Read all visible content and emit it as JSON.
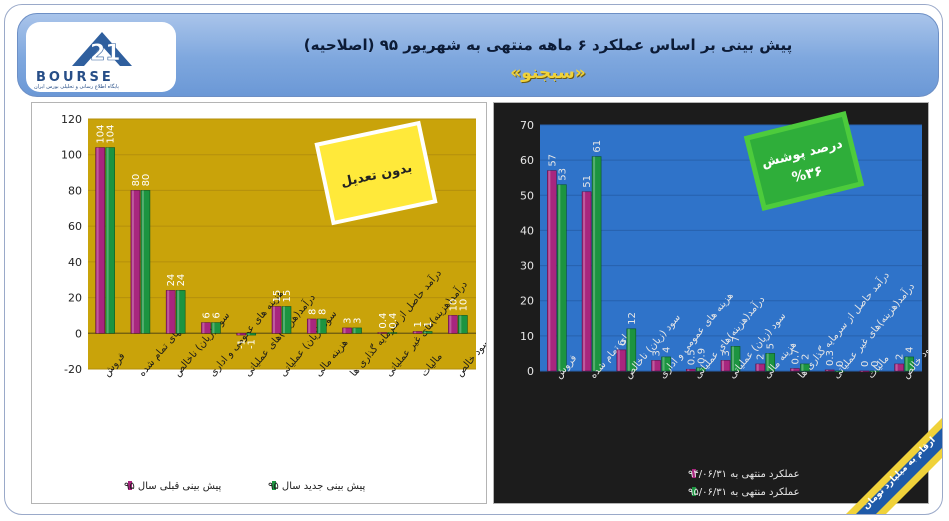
{
  "header": {
    "title": "پیش بینی بر اساس عملکرد ۶ ماهه منتهی به شهریور ۹۵ (اصلاحیه)",
    "company": "«سبجنو»",
    "logo_word": "BOURSE",
    "logo_sub": "پایگاه اطلاع رسانی و تحلیلی بورس ایران"
  },
  "left_badge": "بدون تعدیل",
  "right_badge": {
    "line1": "درصد پوشش",
    "line2": "%۳۶"
  },
  "corner_note": "ارقام به میلیارد تومان",
  "colors": {
    "series_pink": "#a8267e",
    "series_green": "#1c9440",
    "left_plot_bg": "#c9a30a",
    "right_plot_bg": "#2f73c9",
    "header_bg": "#7ea7de",
    "badge_border": "#4dcb3c"
  },
  "chart_data": [
    {
      "type": "bar",
      "panel": "left",
      "categories": [
        "فروش",
        "بهای تمام شده",
        "سود (زیان) ناخالص",
        "هزینه های عمومی و اداری",
        "درآمد(هزینه)های عملیاتی",
        "سود (زیان) عملیاتی",
        "هزینه مالی",
        "درآمد حاصل از سرمایه گذاری ها",
        "درآمد(هزینه)های غیر عملیاتی",
        "مالیات",
        "سود خالص"
      ],
      "series": [
        {
          "name": "پیش بینی قبلی سال ۹۵",
          "values": [
            104,
            80,
            24,
            6,
            -1,
            15,
            8,
            3,
            0.4,
            1,
            10
          ]
        },
        {
          "name": "پیش بینی جدید سال ۹۵",
          "values": [
            104,
            80,
            24,
            6,
            -1,
            15,
            8,
            3,
            0.4,
            1,
            10
          ]
        }
      ],
      "value_labels": [
        [
          "104",
          "80",
          "24",
          "6",
          "-1",
          "15",
          "8",
          "3",
          "0.4",
          "1",
          "10"
        ],
        [
          "104",
          "80",
          "24",
          "6",
          "-1",
          "15",
          "8",
          "3",
          "0.4",
          "1",
          "10"
        ]
      ],
      "ylim": [
        -20,
        120
      ],
      "yticks": [
        "-20",
        "0",
        "20",
        "40",
        "60",
        "80",
        "100",
        "120"
      ],
      "legend": "bottom",
      "grid": true
    },
    {
      "type": "bar",
      "panel": "right",
      "categories": [
        "فروش",
        "بهای تمام شده",
        "سود (زیان) ناخالص",
        "هزینه های عمومی و اداری",
        "درآمد(هزینه)های عملیاتی",
        "سود (زیان) عملیاتی",
        "هزینه مالی",
        "درآمد حاصل از سرمایه گذاری ها",
        "درآمد(هزینه)های غیر عملیاتی",
        "مالیات",
        "سود خالص"
      ],
      "series": [
        {
          "name": "عملکرد منتهی به ۹۴/۰۶/۳۱",
          "values": [
            57,
            51,
            6,
            3,
            0.5,
            3,
            2,
            0.7,
            0.3,
            0,
            2
          ]
        },
        {
          "name": "عملکرد منتهی به ۹۵/۰۶/۳۱",
          "values": [
            53,
            61,
            12,
            4,
            0.9,
            7,
            5,
            2,
            0,
            0,
            4
          ]
        }
      ],
      "value_labels": [
        [
          "57",
          "51",
          "6",
          "3",
          "0.5",
          "3",
          "2",
          "0.7",
          "0.3",
          "0",
          "2"
        ],
        [
          "53",
          "61",
          "12",
          "4",
          "0.9",
          "7",
          "5",
          "2",
          "0",
          "0",
          "4"
        ]
      ],
      "ylim": [
        0,
        70
      ],
      "yticks": [
        "0",
        "10",
        "20",
        "30",
        "40",
        "50",
        "60",
        "70"
      ],
      "legend": "bottom",
      "grid": true
    }
  ]
}
